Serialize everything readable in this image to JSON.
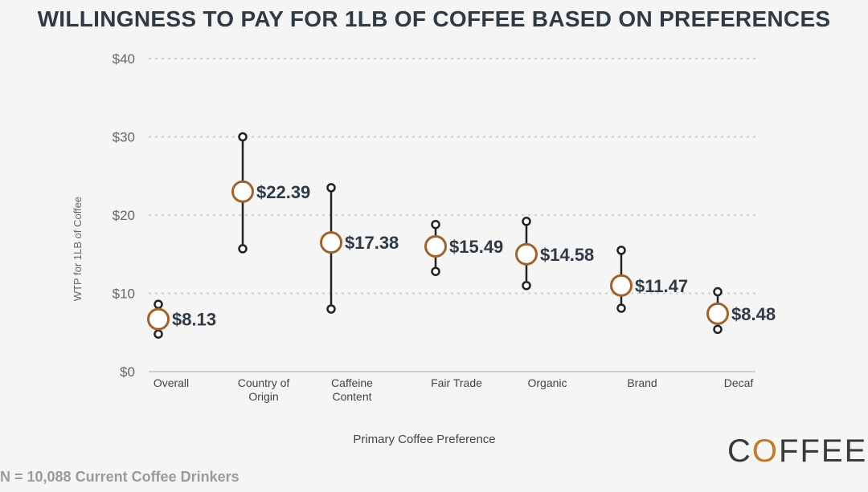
{
  "title": "WILLINGNESS TO PAY FOR 1LB OF COFFEE BASED ON PREFERENCES",
  "footer": "N = 10,088 Current Coffee Drinkers",
  "logo": {
    "pre": "C",
    "o": "O",
    "post": "FFEE"
  },
  "colors": {
    "marker": "#a0622a",
    "line": "#222222",
    "text": "#2f3a44",
    "grid": "#d0d0d0"
  },
  "chart_data": {
    "type": "scatter",
    "title": "WILLINGNESS TO PAY FOR 1LB OF COFFEE BASED ON PREFERENCES",
    "xlabel": "Primary Coffee Preference",
    "ylabel": "WTP for 1LB of Coffee",
    "ylim": [
      0,
      40
    ],
    "yticks": [
      0,
      10,
      20,
      30,
      40
    ],
    "ytick_labels": [
      "$0",
      "$10",
      "$20",
      "$30",
      "$40"
    ],
    "grid": true,
    "categories": [
      {
        "label": [
          "Overall"
        ],
        "value": 8.13,
        "marker": 6.7,
        "low": 4.8,
        "high": 8.6,
        "value_label": "$8.13"
      },
      {
        "label": [
          "Country of",
          "Origin"
        ],
        "value": 22.39,
        "marker": 23.0,
        "low": 15.7,
        "high": 30.0,
        "value_label": "$22.39"
      },
      {
        "label": [
          "Caffeine",
          "Content"
        ],
        "value": 17.38,
        "marker": 16.5,
        "low": 8.0,
        "high": 23.5,
        "value_label": "$17.38"
      },
      {
        "label": [
          "Fair Trade"
        ],
        "value": 15.49,
        "marker": 16.0,
        "low": 12.8,
        "high": 18.8,
        "value_label": "$15.49"
      },
      {
        "label": [
          "Organic"
        ],
        "value": 14.58,
        "marker": 15.0,
        "low": 11.0,
        "high": 19.2,
        "value_label": "$14.58"
      },
      {
        "label": [
          "Brand"
        ],
        "value": 11.47,
        "marker": 11.0,
        "low": 8.1,
        "high": 15.5,
        "value_label": "$11.47"
      },
      {
        "label": [
          "Decaf"
        ],
        "value": 8.48,
        "marker": 7.4,
        "low": 5.4,
        "high": 10.2,
        "value_label": "$8.48"
      }
    ]
  }
}
